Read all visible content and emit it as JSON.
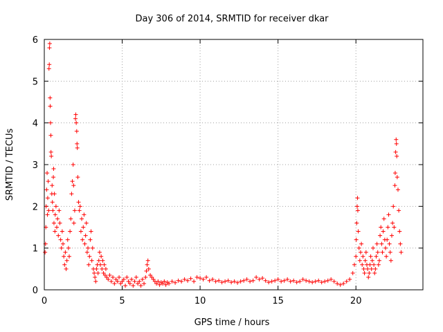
{
  "chart_data": {
    "type": "scatter",
    "title": "Day 306 of 2014, SRMTID for receiver dkar",
    "xlabel": "GPS time / hours",
    "ylabel": "SRMTID / TECUs",
    "xlim": [
      0,
      24.3
    ],
    "ylim": [
      0,
      6
    ],
    "xticks": [
      0,
      5,
      10,
      15,
      20
    ],
    "yticks": [
      0,
      1,
      2,
      3,
      4,
      5,
      6
    ],
    "xtick_labels": [
      "0",
      "5",
      "10",
      "15",
      "20"
    ],
    "ytick_labels": [
      "0",
      "1",
      "2",
      "3",
      "4",
      "5",
      "6"
    ],
    "grid": true,
    "marker": "+",
    "color": "#ff0000",
    "series": [
      {
        "name": "SRMTID",
        "points": [
          [
            0.05,
            0.9
          ],
          [
            0.08,
            1.1
          ],
          [
            0.1,
            1.5
          ],
          [
            0.12,
            2.0
          ],
          [
            0.15,
            2.4
          ],
          [
            0.18,
            2.8
          ],
          [
            0.2,
            1.8
          ],
          [
            0.22,
            2.2
          ],
          [
            0.25,
            2.6
          ],
          [
            0.28,
            1.9
          ],
          [
            0.3,
            5.3
          ],
          [
            0.32,
            5.4
          ],
          [
            0.33,
            5.8
          ],
          [
            0.35,
            5.9
          ],
          [
            0.37,
            4.6
          ],
          [
            0.38,
            4.4
          ],
          [
            0.4,
            4.0
          ],
          [
            0.42,
            3.7
          ],
          [
            0.43,
            3.3
          ],
          [
            0.45,
            3.2
          ],
          [
            0.48,
            2.3
          ],
          [
            0.5,
            2.5
          ],
          [
            0.52,
            2.1
          ],
          [
            0.55,
            1.9
          ],
          [
            0.58,
            2.7
          ],
          [
            0.6,
            2.9
          ],
          [
            0.62,
            1.6
          ],
          [
            0.65,
            2.3
          ],
          [
            0.68,
            1.4
          ],
          [
            0.7,
            1.8
          ],
          [
            0.75,
            2.0
          ],
          [
            0.8,
            1.5
          ],
          [
            0.85,
            1.7
          ],
          [
            0.9,
            1.3
          ],
          [
            0.95,
            1.9
          ],
          [
            1.0,
            1.6
          ],
          [
            1.05,
            1.2
          ],
          [
            1.1,
            1.0
          ],
          [
            1.15,
            1.4
          ],
          [
            1.2,
            1.1
          ],
          [
            1.25,
            0.8
          ],
          [
            1.3,
            0.6
          ],
          [
            1.35,
            0.9
          ],
          [
            1.4,
            0.5
          ],
          [
            1.45,
            0.7
          ],
          [
            1.5,
            1.2
          ],
          [
            1.55,
            1.0
          ],
          [
            1.6,
            0.8
          ],
          [
            1.65,
            1.4
          ],
          [
            1.7,
            1.7
          ],
          [
            1.75,
            2.3
          ],
          [
            1.8,
            2.6
          ],
          [
            1.85,
            3.0
          ],
          [
            1.88,
            2.5
          ],
          [
            1.9,
            1.6
          ],
          [
            1.95,
            1.9
          ],
          [
            2.0,
            4.1
          ],
          [
            2.02,
            4.2
          ],
          [
            2.05,
            4.0
          ],
          [
            2.08,
            3.8
          ],
          [
            2.1,
            3.5
          ],
          [
            2.12,
            3.4
          ],
          [
            2.15,
            2.7
          ],
          [
            2.2,
            2.1
          ],
          [
            2.25,
            1.9
          ],
          [
            2.3,
            2.0
          ],
          [
            2.35,
            1.4
          ],
          [
            2.4,
            1.7
          ],
          [
            2.45,
            1.2
          ],
          [
            2.5,
            1.5
          ],
          [
            2.55,
            1.8
          ],
          [
            2.6,
            1.1
          ],
          [
            2.65,
            1.3
          ],
          [
            2.7,
            1.6
          ],
          [
            2.75,
            0.9
          ],
          [
            2.8,
            1.0
          ],
          [
            2.85,
            0.6
          ],
          [
            2.9,
            0.8
          ],
          [
            2.95,
            1.2
          ],
          [
            3.0,
            1.4
          ],
          [
            3.05,
            0.7
          ],
          [
            3.1,
            1.0
          ],
          [
            3.15,
            0.5
          ],
          [
            3.2,
            0.4
          ],
          [
            3.25,
            0.3
          ],
          [
            3.3,
            0.2
          ],
          [
            3.35,
            0.5
          ],
          [
            3.4,
            0.6
          ],
          [
            3.45,
            0.4
          ],
          [
            3.5,
            0.7
          ],
          [
            3.55,
            0.9
          ],
          [
            3.6,
            0.6
          ],
          [
            3.65,
            0.8
          ],
          [
            3.7,
            0.5
          ],
          [
            3.75,
            0.7
          ],
          [
            3.8,
            0.4
          ],
          [
            3.85,
            0.6
          ],
          [
            3.9,
            0.35
          ],
          [
            3.95,
            0.5
          ],
          [
            4.0,
            0.3
          ],
          [
            4.1,
            0.25
          ],
          [
            4.2,
            0.35
          ],
          [
            4.3,
            0.2
          ],
          [
            4.4,
            0.3
          ],
          [
            4.5,
            0.15
          ],
          [
            4.6,
            0.25
          ],
          [
            4.7,
            0.2
          ],
          [
            4.8,
            0.3
          ],
          [
            4.9,
            0.15
          ],
          [
            5.0,
            0.2
          ],
          [
            5.1,
            0.25
          ],
          [
            5.2,
            0.1
          ],
          [
            5.3,
            0.3
          ],
          [
            5.4,
            0.2
          ],
          [
            5.5,
            0.15
          ],
          [
            5.6,
            0.25
          ],
          [
            5.7,
            0.1
          ],
          [
            5.8,
            0.2
          ],
          [
            5.9,
            0.3
          ],
          [
            6.0,
            0.15
          ],
          [
            6.1,
            0.2
          ],
          [
            6.2,
            0.1
          ],
          [
            6.3,
            0.25
          ],
          [
            6.4,
            0.15
          ],
          [
            6.5,
            0.3
          ],
          [
            6.55,
            0.45
          ],
          [
            6.6,
            0.6
          ],
          [
            6.65,
            0.7
          ],
          [
            6.7,
            0.5
          ],
          [
            6.8,
            0.35
          ],
          [
            6.9,
            0.3
          ],
          [
            7.0,
            0.25
          ],
          [
            7.1,
            0.2
          ],
          [
            7.2,
            0.15
          ],
          [
            7.3,
            0.2
          ],
          [
            7.4,
            0.12
          ],
          [
            7.5,
            0.18
          ],
          [
            7.6,
            0.15
          ],
          [
            7.7,
            0.2
          ],
          [
            7.8,
            0.12
          ],
          [
            7.9,
            0.18
          ],
          [
            8.0,
            0.15
          ],
          [
            8.2,
            0.2
          ],
          [
            8.4,
            0.17
          ],
          [
            8.6,
            0.22
          ],
          [
            8.8,
            0.2
          ],
          [
            9.0,
            0.25
          ],
          [
            9.2,
            0.22
          ],
          [
            9.4,
            0.27
          ],
          [
            9.6,
            0.2
          ],
          [
            9.8,
            0.3
          ],
          [
            10.0,
            0.28
          ],
          [
            10.2,
            0.25
          ],
          [
            10.4,
            0.3
          ],
          [
            10.6,
            0.22
          ],
          [
            10.8,
            0.25
          ],
          [
            11.0,
            0.2
          ],
          [
            11.2,
            0.22
          ],
          [
            11.4,
            0.18
          ],
          [
            11.6,
            0.2
          ],
          [
            11.8,
            0.22
          ],
          [
            12.0,
            0.18
          ],
          [
            12.2,
            0.2
          ],
          [
            12.4,
            0.17
          ],
          [
            12.6,
            0.2
          ],
          [
            12.8,
            0.22
          ],
          [
            13.0,
            0.25
          ],
          [
            13.2,
            0.2
          ],
          [
            13.4,
            0.22
          ],
          [
            13.6,
            0.3
          ],
          [
            13.8,
            0.25
          ],
          [
            14.0,
            0.28
          ],
          [
            14.2,
            0.22
          ],
          [
            14.4,
            0.18
          ],
          [
            14.6,
            0.2
          ],
          [
            14.8,
            0.22
          ],
          [
            15.0,
            0.25
          ],
          [
            15.2,
            0.2
          ],
          [
            15.4,
            0.22
          ],
          [
            15.6,
            0.25
          ],
          [
            15.8,
            0.2
          ],
          [
            16.0,
            0.22
          ],
          [
            16.2,
            0.18
          ],
          [
            16.4,
            0.2
          ],
          [
            16.6,
            0.25
          ],
          [
            16.8,
            0.22
          ],
          [
            17.0,
            0.2
          ],
          [
            17.2,
            0.18
          ],
          [
            17.4,
            0.2
          ],
          [
            17.6,
            0.22
          ],
          [
            17.8,
            0.18
          ],
          [
            18.0,
            0.2
          ],
          [
            18.2,
            0.22
          ],
          [
            18.4,
            0.25
          ],
          [
            18.6,
            0.2
          ],
          [
            18.8,
            0.15
          ],
          [
            19.0,
            0.12
          ],
          [
            19.2,
            0.15
          ],
          [
            19.4,
            0.2
          ],
          [
            19.6,
            0.25
          ],
          [
            19.8,
            0.4
          ],
          [
            19.9,
            0.6
          ],
          [
            20.0,
            0.8
          ],
          [
            20.02,
            1.2
          ],
          [
            20.05,
            1.6
          ],
          [
            20.08,
            2.0
          ],
          [
            20.1,
            2.2
          ],
          [
            20.12,
            1.9
          ],
          [
            20.15,
            1.4
          ],
          [
            20.2,
            1.0
          ],
          [
            20.25,
            0.7
          ],
          [
            20.3,
            0.9
          ],
          [
            20.35,
            1.1
          ],
          [
            20.4,
            0.6
          ],
          [
            20.45,
            0.8
          ],
          [
            20.5,
            0.5
          ],
          [
            20.55,
            0.4
          ],
          [
            20.6,
            0.7
          ],
          [
            20.65,
            0.9
          ],
          [
            20.7,
            0.6
          ],
          [
            20.75,
            0.5
          ],
          [
            20.8,
            0.3
          ],
          [
            20.85,
            0.4
          ],
          [
            20.9,
            0.6
          ],
          [
            20.95,
            0.8
          ],
          [
            21.0,
            0.5
          ],
          [
            21.05,
            0.7
          ],
          [
            21.1,
            1.0
          ],
          [
            21.15,
            0.6
          ],
          [
            21.2,
            0.4
          ],
          [
            21.25,
            0.5
          ],
          [
            21.3,
            0.8
          ],
          [
            21.35,
            1.1
          ],
          [
            21.4,
            0.9
          ],
          [
            21.45,
            0.6
          ],
          [
            21.5,
            0.7
          ],
          [
            21.55,
            1.3
          ],
          [
            21.6,
            1.5
          ],
          [
            21.65,
            1.1
          ],
          [
            21.7,
            0.9
          ],
          [
            21.75,
            1.4
          ],
          [
            21.8,
            1.7
          ],
          [
            21.85,
            1.2
          ],
          [
            21.9,
            1.0
          ],
          [
            21.95,
            0.8
          ],
          [
            22.0,
            1.2
          ],
          [
            22.05,
            1.5
          ],
          [
            22.1,
            1.8
          ],
          [
            22.15,
            1.1
          ],
          [
            22.2,
            0.9
          ],
          [
            22.25,
            0.7
          ],
          [
            22.3,
            1.3
          ],
          [
            22.35,
            1.6
          ],
          [
            22.4,
            2.0
          ],
          [
            22.45,
            1.5
          ],
          [
            22.5,
            2.5
          ],
          [
            22.52,
            2.8
          ],
          [
            22.55,
            3.3
          ],
          [
            22.58,
            3.6
          ],
          [
            22.6,
            3.5
          ],
          [
            22.62,
            3.2
          ],
          [
            22.65,
            2.7
          ],
          [
            22.7,
            2.4
          ],
          [
            22.75,
            1.9
          ],
          [
            22.8,
            1.4
          ],
          [
            22.85,
            1.1
          ],
          [
            22.9,
            0.9
          ]
        ]
      }
    ]
  }
}
